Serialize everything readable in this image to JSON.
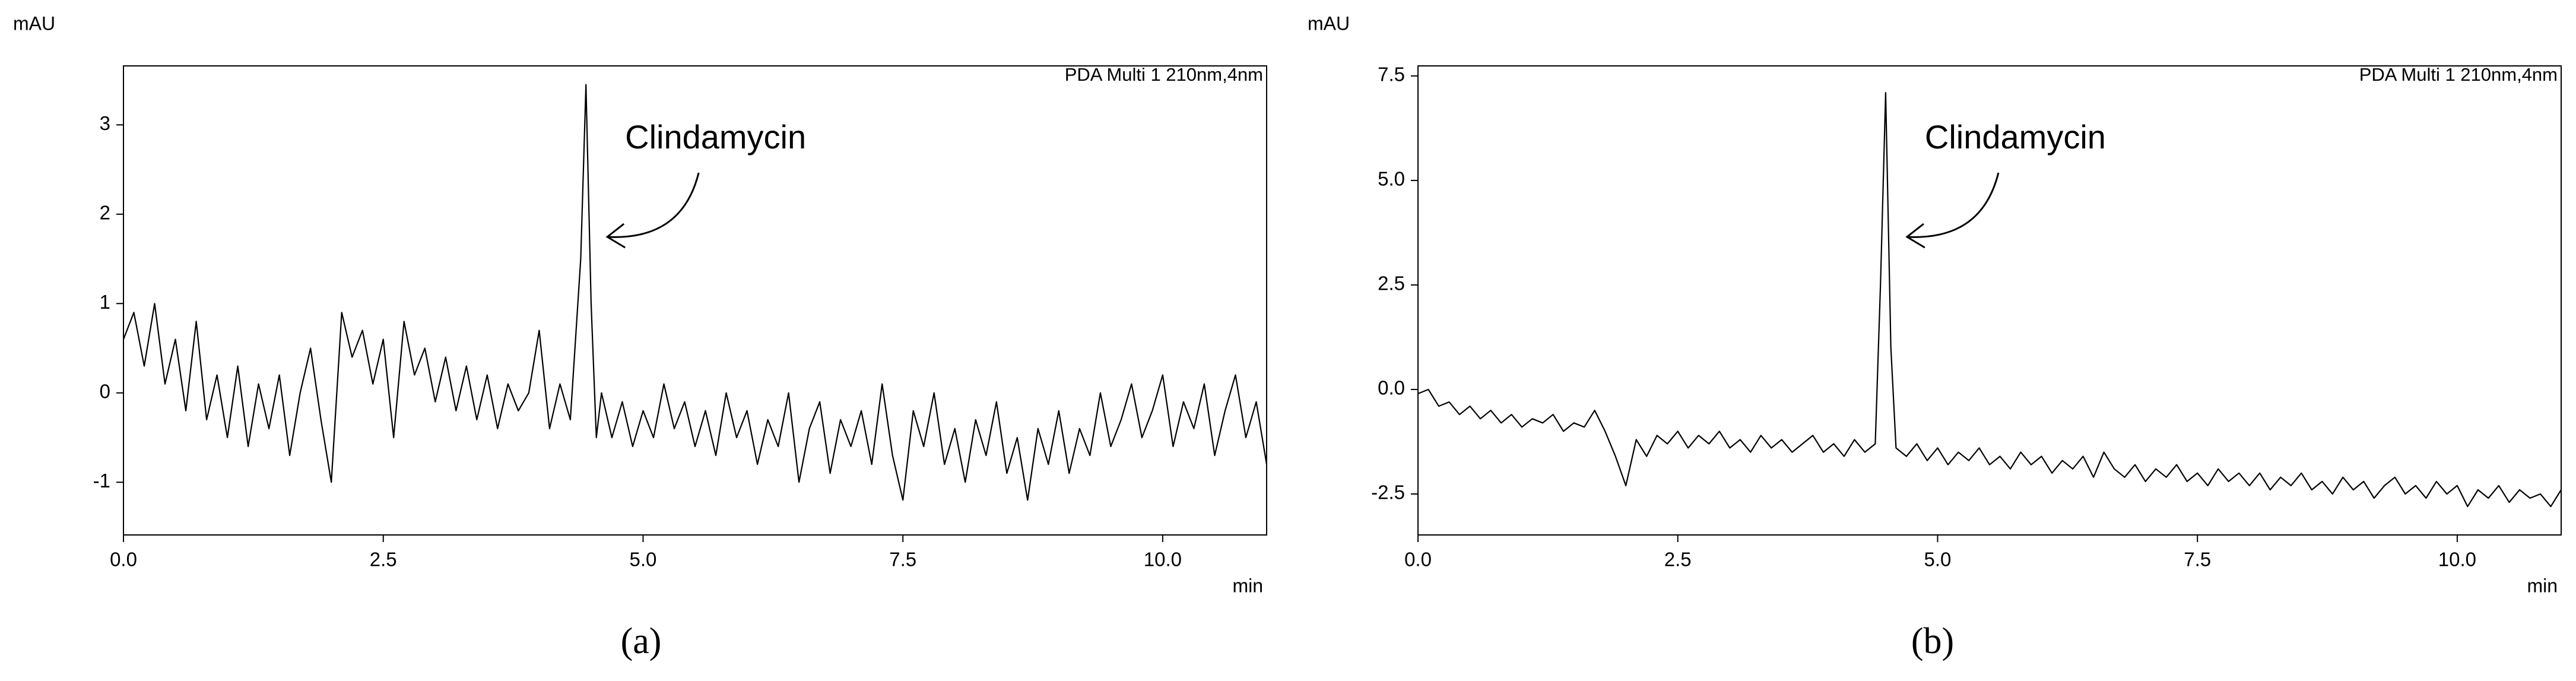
{
  "chart_data": [
    {
      "type": "line",
      "y_label": "mAU",
      "x_label": "min",
      "detector": "PDA Multi 1 210nm,4nm",
      "annotation": "Clindamycin",
      "panel_label": "(a)",
      "color": "#000000",
      "xlim": [
        0,
        11.0
      ],
      "ylim": [
        -1.59,
        3.66
      ],
      "xticks": [
        {
          "value": 0,
          "label": "0.0"
        },
        2.5,
        {
          "value": 5,
          "label": "5.0"
        },
        7.5,
        {
          "value": 10,
          "label": "10.0"
        }
      ],
      "yticks": [
        -1,
        0,
        1,
        2,
        3
      ],
      "x": [
        0.0,
        0.1,
        0.2,
        0.3,
        0.4,
        0.5,
        0.6,
        0.7,
        0.8,
        0.9,
        1.0,
        1.1,
        1.2,
        1.3,
        1.4,
        1.5,
        1.6,
        1.7,
        1.8,
        1.9,
        2.0,
        2.1,
        2.2,
        2.3,
        2.4,
        2.5,
        2.6,
        2.7,
        2.8,
        2.9,
        3.0,
        3.1,
        3.2,
        3.3,
        3.4,
        3.5,
        3.6,
        3.7,
        3.8,
        3.9,
        4.0,
        4.1,
        4.2,
        4.3,
        4.4,
        4.45,
        4.5,
        4.55,
        4.6,
        4.7,
        4.8,
        4.9,
        5.0,
        5.1,
        5.2,
        5.3,
        5.4,
        5.5,
        5.6,
        5.7,
        5.8,
        5.9,
        6.0,
        6.1,
        6.2,
        6.3,
        6.4,
        6.5,
        6.6,
        6.7,
        6.8,
        6.9,
        7.0,
        7.1,
        7.2,
        7.3,
        7.4,
        7.5,
        7.6,
        7.7,
        7.8,
        7.9,
        8.0,
        8.1,
        8.2,
        8.3,
        8.4,
        8.5,
        8.6,
        8.7,
        8.8,
        8.9,
        9.0,
        9.1,
        9.2,
        9.3,
        9.4,
        9.5,
        9.6,
        9.7,
        9.8,
        9.9,
        10.0,
        10.1,
        10.2,
        10.3,
        10.4,
        10.5,
        10.6,
        10.7,
        10.8,
        10.9,
        11.0
      ],
      "values": [
        0.6,
        0.9,
        0.3,
        1.0,
        0.1,
        0.6,
        -0.2,
        0.8,
        -0.3,
        0.2,
        -0.5,
        0.3,
        -0.6,
        0.1,
        -0.4,
        0.2,
        -0.7,
        0.0,
        0.5,
        -0.3,
        -1.0,
        0.9,
        0.4,
        0.7,
        0.1,
        0.6,
        -0.5,
        0.8,
        0.2,
        0.5,
        -0.1,
        0.4,
        -0.2,
        0.3,
        -0.3,
        0.2,
        -0.4,
        0.1,
        -0.2,
        0.0,
        0.7,
        -0.4,
        0.1,
        -0.3,
        1.5,
        3.45,
        1.0,
        -0.5,
        0.0,
        -0.5,
        -0.1,
        -0.6,
        -0.2,
        -0.5,
        0.1,
        -0.4,
        -0.1,
        -0.6,
        -0.2,
        -0.7,
        0.0,
        -0.5,
        -0.2,
        -0.8,
        -0.3,
        -0.6,
        0.0,
        -1.0,
        -0.4,
        -0.1,
        -0.9,
        -0.3,
        -0.6,
        -0.2,
        -0.8,
        0.1,
        -0.7,
        -1.2,
        -0.2,
        -0.6,
        0.0,
        -0.8,
        -0.4,
        -1.0,
        -0.3,
        -0.7,
        -0.1,
        -0.9,
        -0.5,
        -1.2,
        -0.4,
        -0.8,
        -0.2,
        -0.9,
        -0.4,
        -0.7,
        0.0,
        -0.6,
        -0.3,
        0.1,
        -0.5,
        -0.2,
        0.2,
        -0.6,
        -0.1,
        -0.4,
        0.1,
        -0.7,
        -0.2,
        0.2,
        -0.5,
        -0.1,
        -0.8
      ]
    },
    {
      "type": "line",
      "y_label": "mAU",
      "x_label": "min",
      "detector": "PDA Multi 1 210nm,4nm",
      "annotation": "Clindamycin",
      "panel_label": "(b)",
      "color": "#000000",
      "xlim": [
        0,
        11.0
      ],
      "ylim": [
        -3.48,
        7.74
      ],
      "xticks": [
        {
          "value": 0,
          "label": "0.0"
        },
        2.5,
        {
          "value": 5,
          "label": "5.0"
        },
        7.5,
        {
          "value": 10,
          "label": "10.0"
        }
      ],
      "yticks": [
        -2.5,
        {
          "value": 0,
          "label": "0.0"
        },
        2.5,
        {
          "value": 5,
          "label": "5.0"
        },
        7.5
      ],
      "x": [
        0.0,
        0.1,
        0.2,
        0.3,
        0.4,
        0.5,
        0.6,
        0.7,
        0.8,
        0.9,
        1.0,
        1.1,
        1.2,
        1.3,
        1.4,
        1.5,
        1.6,
        1.7,
        1.8,
        1.9,
        2.0,
        2.1,
        2.2,
        2.3,
        2.4,
        2.5,
        2.6,
        2.7,
        2.8,
        2.9,
        3.0,
        3.1,
        3.2,
        3.3,
        3.4,
        3.5,
        3.6,
        3.7,
        3.8,
        3.9,
        4.0,
        4.1,
        4.2,
        4.3,
        4.4,
        4.45,
        4.5,
        4.55,
        4.6,
        4.7,
        4.8,
        4.9,
        5.0,
        5.1,
        5.2,
        5.3,
        5.4,
        5.5,
        5.6,
        5.7,
        5.8,
        5.9,
        6.0,
        6.1,
        6.2,
        6.3,
        6.4,
        6.5,
        6.6,
        6.7,
        6.8,
        6.9,
        7.0,
        7.1,
        7.2,
        7.3,
        7.4,
        7.5,
        7.6,
        7.7,
        7.8,
        7.9,
        8.0,
        8.1,
        8.2,
        8.3,
        8.4,
        8.5,
        8.6,
        8.7,
        8.8,
        8.9,
        9.0,
        9.1,
        9.2,
        9.3,
        9.4,
        9.5,
        9.6,
        9.7,
        9.8,
        9.9,
        10.0,
        10.1,
        10.2,
        10.3,
        10.4,
        10.5,
        10.6,
        10.7,
        10.8,
        10.9,
        11.0
      ],
      "values": [
        -0.1,
        0.0,
        -0.4,
        -0.3,
        -0.6,
        -0.4,
        -0.7,
        -0.5,
        -0.8,
        -0.6,
        -0.9,
        -0.7,
        -0.8,
        -0.6,
        -1.0,
        -0.8,
        -0.9,
        -0.5,
        -1.0,
        -1.6,
        -2.3,
        -1.2,
        -1.6,
        -1.1,
        -1.3,
        -1.0,
        -1.4,
        -1.1,
        -1.3,
        -1.0,
        -1.4,
        -1.2,
        -1.5,
        -1.1,
        -1.4,
        -1.2,
        -1.5,
        -1.3,
        -1.1,
        -1.5,
        -1.3,
        -1.6,
        -1.2,
        -1.5,
        -1.3,
        2.5,
        7.1,
        1.0,
        -1.4,
        -1.6,
        -1.3,
        -1.7,
        -1.4,
        -1.8,
        -1.5,
        -1.7,
        -1.4,
        -1.8,
        -1.6,
        -1.9,
        -1.5,
        -1.8,
        -1.6,
        -2.0,
        -1.7,
        -1.9,
        -1.6,
        -2.1,
        -1.5,
        -1.9,
        -2.1,
        -1.8,
        -2.2,
        -1.9,
        -2.1,
        -1.8,
        -2.2,
        -2.0,
        -2.3,
        -1.9,
        -2.2,
        -2.0,
        -2.3,
        -2.0,
        -2.4,
        -2.1,
        -2.3,
        -2.0,
        -2.4,
        -2.2,
        -2.5,
        -2.1,
        -2.4,
        -2.2,
        -2.6,
        -2.3,
        -2.1,
        -2.5,
        -2.3,
        -2.6,
        -2.2,
        -2.5,
        -2.3,
        -2.8,
        -2.4,
        -2.6,
        -2.3,
        -2.7,
        -2.4,
        -2.6,
        -2.5,
        -2.8,
        -2.4
      ]
    }
  ]
}
